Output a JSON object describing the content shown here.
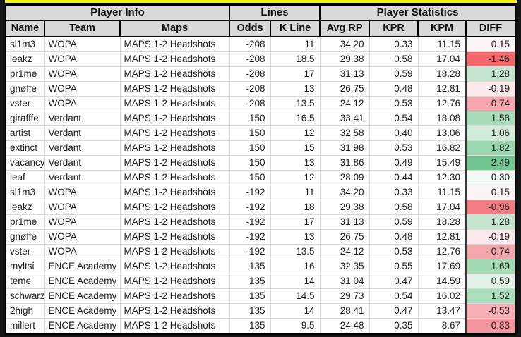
{
  "colors": {
    "banner_yellow": "#f7f200",
    "header_bg": "#d9d9d9",
    "grid_line": "#d9d9d9",
    "border_black": "#000000",
    "page_bg": "#141414",
    "cell_bg": "#ffffff",
    "diff_divider": "#3a3a3a"
  },
  "table": {
    "groups": [
      {
        "label": "Player Info"
      },
      {
        "label": "Lines"
      },
      {
        "label": "Player Statistics"
      }
    ],
    "columns": [
      "Name",
      "Team",
      "Maps",
      "Odds",
      "K Line",
      "Avg RP",
      "KPR",
      "KPM",
      "DIFF"
    ],
    "rows": [
      {
        "name": "sl1m3",
        "team": "WOPA",
        "maps": "MAPS 1-2 Headshots",
        "odds": "-208",
        "k_line": "11",
        "avg_rp": "34.20",
        "kpr": "0.33",
        "kpm": "11.15",
        "diff": "0.15",
        "diff_color": "#fbf5f5"
      },
      {
        "name": "leakz",
        "team": "WOPA",
        "maps": "MAPS 1-2 Headshots",
        "odds": "-208",
        "k_line": "18.5",
        "avg_rp": "29.38",
        "kpr": "0.58",
        "kpm": "17.04",
        "diff": "-1.46",
        "diff_color": "#f4676d"
      },
      {
        "name": "pr1me",
        "team": "WOPA",
        "maps": "MAPS 1-2 Headshots",
        "odds": "-208",
        "k_line": "17",
        "avg_rp": "31.13",
        "kpr": "0.59",
        "kpm": "18.28",
        "diff": "1.28",
        "diff_color": "#c7e6cf"
      },
      {
        "name": "gnøffe",
        "team": "WOPA",
        "maps": "MAPS 1-2 Headshots",
        "odds": "-208",
        "k_line": "13",
        "avg_rp": "26.75",
        "kpr": "0.48",
        "kpm": "12.81",
        "diff": "-0.19",
        "diff_color": "#fae8ea"
      },
      {
        "name": "vster",
        "team": "WOPA",
        "maps": "MAPS 1-2 Headshots",
        "odds": "-208",
        "k_line": "13.5",
        "avg_rp": "24.12",
        "kpr": "0.53",
        "kpm": "12.76",
        "diff": "-0.74",
        "diff_color": "#f5a6ac"
      },
      {
        "name": "girafffe",
        "team": "Verdant",
        "maps": "MAPS 1-2 Headshots",
        "odds": "150",
        "k_line": "16.5",
        "avg_rp": "33.41",
        "kpr": "0.54",
        "kpm": "18.08",
        "diff": "1.58",
        "diff_color": "#a8dcb8"
      },
      {
        "name": "artist",
        "team": "Verdant",
        "maps": "MAPS 1-2 Headshots",
        "odds": "150",
        "k_line": "12",
        "avg_rp": "32.58",
        "kpr": "0.40",
        "kpm": "13.06",
        "diff": "1.06",
        "diff_color": "#d2ecd9"
      },
      {
        "name": "extinct",
        "team": "Verdant",
        "maps": "MAPS 1-2 Headshots",
        "odds": "150",
        "k_line": "15",
        "avg_rp": "31.98",
        "kpr": "0.53",
        "kpm": "16.82",
        "diff": "1.82",
        "diff_color": "#9bd7ae"
      },
      {
        "name": "vacancy",
        "team": "Verdant",
        "maps": "MAPS 1-2 Headshots",
        "odds": "150",
        "k_line": "13",
        "avg_rp": "31.86",
        "kpr": "0.49",
        "kpm": "15.49",
        "diff": "2.49",
        "diff_color": "#70c78f"
      },
      {
        "name": "leaf",
        "team": "Verdant",
        "maps": "MAPS 1-2 Headshots",
        "odds": "150",
        "k_line": "12",
        "avg_rp": "28.09",
        "kpr": "0.44",
        "kpm": "12.30",
        "diff": "0.30",
        "diff_color": "#f3faf5"
      },
      {
        "name": "sl1m3",
        "team": "WOPA",
        "maps": "MAPS 1-2 Headshots",
        "odds": "-192",
        "k_line": "11",
        "avg_rp": "34.20",
        "kpr": "0.33",
        "kpm": "11.15",
        "diff": "0.15",
        "diff_color": "#fbf5f5"
      },
      {
        "name": "leakz",
        "team": "WOPA",
        "maps": "MAPS 1-2 Headshots",
        "odds": "-192",
        "k_line": "18",
        "avg_rp": "29.38",
        "kpr": "0.58",
        "kpm": "17.04",
        "diff": "-0.96",
        "diff_color": "#f47d84"
      },
      {
        "name": "pr1me",
        "team": "WOPA",
        "maps": "MAPS 1-2 Headshots",
        "odds": "-192",
        "k_line": "17",
        "avg_rp": "31.13",
        "kpr": "0.59",
        "kpm": "18.28",
        "diff": "1.28",
        "diff_color": "#c7e6cf"
      },
      {
        "name": "gnøffe",
        "team": "WOPA",
        "maps": "MAPS 1-2 Headshots",
        "odds": "-192",
        "k_line": "13",
        "avg_rp": "26.75",
        "kpr": "0.48",
        "kpm": "12.81",
        "diff": "-0.19",
        "diff_color": "#fae8ea"
      },
      {
        "name": "vster",
        "team": "WOPA",
        "maps": "MAPS 1-2 Headshots",
        "odds": "-192",
        "k_line": "13.5",
        "avg_rp": "24.12",
        "kpr": "0.53",
        "kpm": "12.76",
        "diff": "-0.74",
        "diff_color": "#f5a6ac"
      },
      {
        "name": "myltsi",
        "team": "ENCE Academy",
        "maps": "MAPS 1-2 Headshots",
        "odds": "135",
        "k_line": "16",
        "avg_rp": "32.35",
        "kpr": "0.55",
        "kpm": "17.69",
        "diff": "1.69",
        "diff_color": "#a2dab3"
      },
      {
        "name": "teme",
        "team": "ENCE Academy",
        "maps": "MAPS 1-2 Headshots",
        "odds": "135",
        "k_line": "14",
        "avg_rp": "31.04",
        "kpr": "0.47",
        "kpm": "14.59",
        "diff": "0.59",
        "diff_color": "#e3f3e8"
      },
      {
        "name": "schwarz",
        "team": "ENCE Academy",
        "maps": "MAPS 1-2 Headshots",
        "odds": "135",
        "k_line": "14.5",
        "avg_rp": "29.73",
        "kpr": "0.54",
        "kpm": "16.02",
        "diff": "1.52",
        "diff_color": "#abdeba"
      },
      {
        "name": "2high",
        "team": "ENCE Academy",
        "maps": "MAPS 1-2 Headshots",
        "odds": "135",
        "k_line": "14",
        "avg_rp": "28.41",
        "kpr": "0.47",
        "kpm": "13.47",
        "diff": "-0.53",
        "diff_color": "#f8b0b6"
      },
      {
        "name": "millert",
        "team": "ENCE Academy",
        "maps": "MAPS 1-2 Headshots",
        "odds": "135",
        "k_line": "9.5",
        "avg_rp": "24.48",
        "kpr": "0.35",
        "kpm": "8.67",
        "diff": "-0.83",
        "diff_color": "#f5959c"
      }
    ]
  }
}
